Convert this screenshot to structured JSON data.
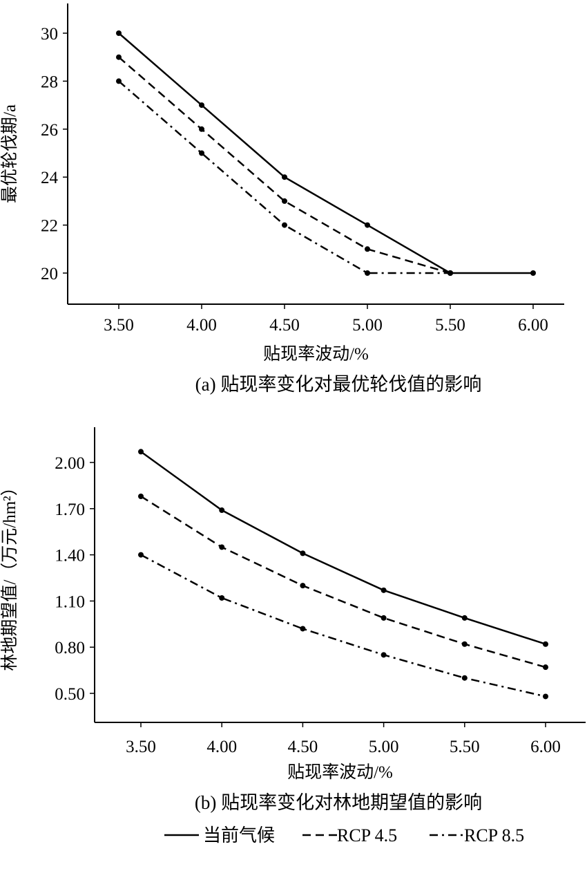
{
  "chart_data": [
    {
      "type": "line",
      "title": "(a) 贴现率变化对最优轮伐值的影响",
      "xlabel": "贴现率波动/%",
      "ylabel": "最优轮伐期/a",
      "x": [
        3.5,
        4.0,
        4.5,
        5.0,
        5.5,
        6.0
      ],
      "xticks": [
        "3.50",
        "4.00",
        "4.50",
        "5.00",
        "5.50",
        "6.00"
      ],
      "yticks": [
        "20",
        "22",
        "24",
        "26",
        "28",
        "30"
      ],
      "ylim": [
        20,
        30
      ],
      "series": [
        {
          "name": "当前气候",
          "style": "solid",
          "values": [
            30,
            27,
            24,
            22,
            20,
            20
          ]
        },
        {
          "name": "RCP 4.5",
          "style": "dashed",
          "values": [
            29,
            26,
            23,
            21,
            20,
            null
          ]
        },
        {
          "name": "RCP 8.5",
          "style": "dashdot",
          "values": [
            28,
            25,
            22,
            20,
            20,
            null
          ]
        }
      ]
    },
    {
      "type": "line",
      "title": "(b) 贴现率变化对林地期望值的影响",
      "xlabel": "贴现率波动/%",
      "ylabel": "林地期望值/（万元/hm²）",
      "x": [
        3.5,
        4.0,
        4.5,
        5.0,
        5.5,
        6.0
      ],
      "xticks": [
        "3.50",
        "4.00",
        "4.50",
        "5.00",
        "5.50",
        "6.00"
      ],
      "yticks": [
        "0.50",
        "0.80",
        "1.10",
        "1.40",
        "1.70",
        "2.00"
      ],
      "ylim": [
        0.5,
        2.0
      ],
      "series": [
        {
          "name": "当前气候",
          "style": "solid",
          "values": [
            2.07,
            1.69,
            1.41,
            1.17,
            0.99,
            0.82
          ]
        },
        {
          "name": "RCP 4.5",
          "style": "dashed",
          "values": [
            1.78,
            1.45,
            1.2,
            0.99,
            0.82,
            0.67
          ]
        },
        {
          "name": "RCP 8.5",
          "style": "dashdot",
          "values": [
            1.4,
            1.12,
            0.92,
            0.75,
            0.6,
            0.48
          ]
        }
      ]
    }
  ],
  "legend": [
    "当前气候",
    "RCP 4.5",
    "RCP 8.5"
  ]
}
